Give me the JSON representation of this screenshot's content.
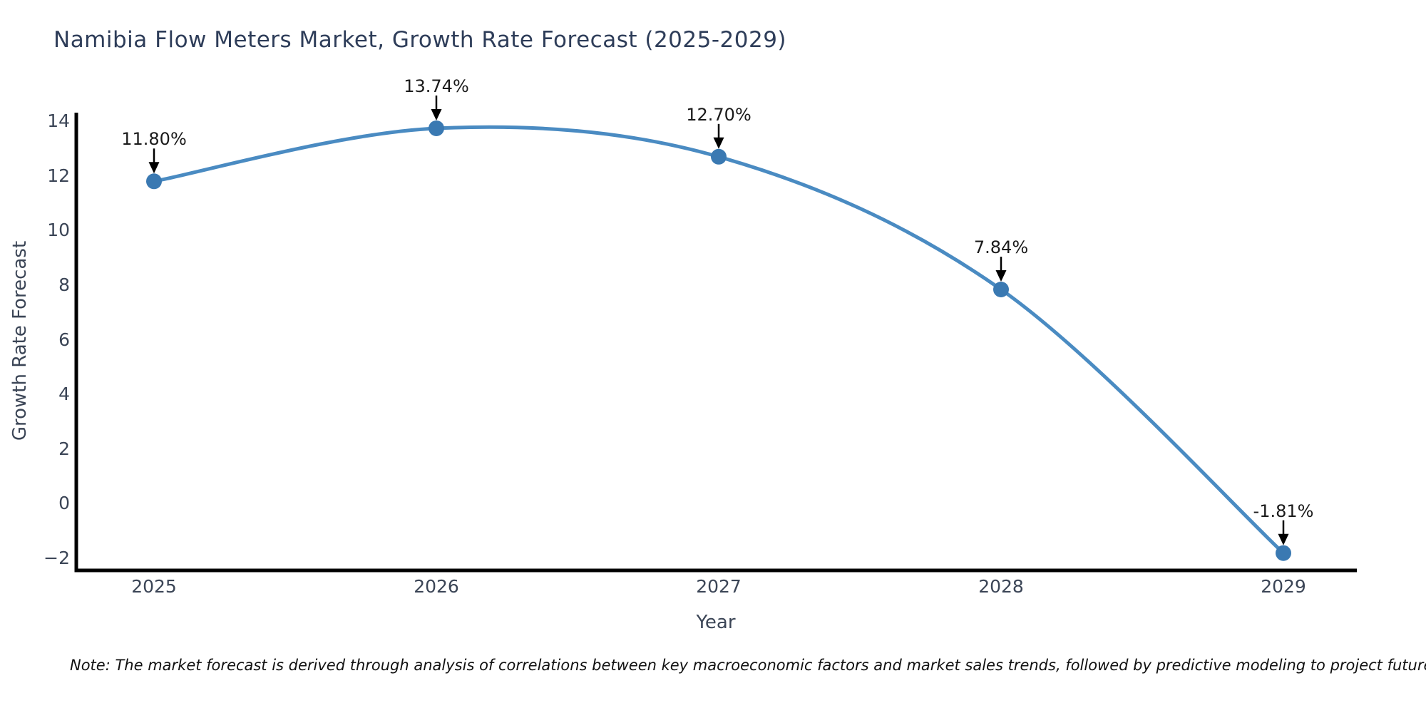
{
  "chart_data": {
    "type": "line",
    "title": "Namibia Flow Meters Market, Growth Rate Forecast (2025-2029)",
    "xlabel": "Year",
    "ylabel": "Growth Rate Forecast",
    "x": [
      2025,
      2026,
      2027,
      2028,
      2029
    ],
    "series": [
      {
        "name": "Growth Rate Forecast",
        "values": [
          11.8,
          13.74,
          12.7,
          7.84,
          -1.81
        ]
      }
    ],
    "annotations": [
      "11.80%",
      "13.74%",
      "12.70%",
      "7.84%",
      "-1.81%"
    ],
    "xticklabels": [
      "2025",
      "2026",
      "2027",
      "2028",
      "2029"
    ],
    "ytick_labels": [
      "14",
      "12",
      "10",
      "8",
      "6",
      "4",
      "2",
      "0",
      "−2"
    ],
    "ytick_values": [
      14,
      12,
      10,
      8,
      6,
      4,
      2,
      0,
      -2
    ],
    "ylim": [
      -2.45,
      14.3
    ],
    "xlim": [
      2024.72,
      2029.26
    ],
    "grid": false,
    "legend": "none",
    "curve": "spline",
    "colors": {
      "line": "#4a8bc2",
      "marker": "#3a79b2",
      "axis": "#000000",
      "arrow": "#000000",
      "title_text": "#2e3d59",
      "tick_text": "#3b4556"
    }
  },
  "note": "Note: The market forecast is derived through analysis of correlations between key macroeconomic factors and market sales trends, followed by predictive modeling to project future sales"
}
